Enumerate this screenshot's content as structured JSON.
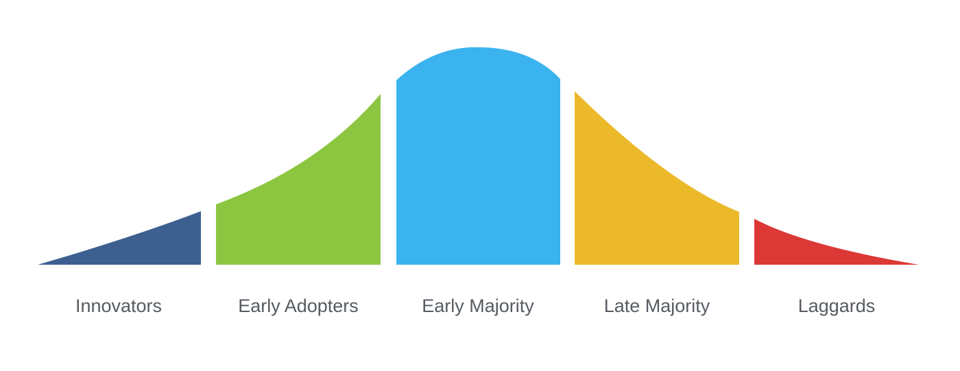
{
  "segments": [
    {
      "id": "innovators",
      "label": "Innovators",
      "color": "#3d6091"
    },
    {
      "id": "early-adopters",
      "label": "Early Adopters",
      "color": "#8cc641"
    },
    {
      "id": "early-majority",
      "label": "Early Majority",
      "color": "#3bb3ee"
    },
    {
      "id": "late-majority",
      "label": "Late Majority",
      "color": "#ecb92a"
    },
    {
      "id": "laggards",
      "label": "Laggards",
      "color": "#dc3836"
    }
  ],
  "background": "#ffffff",
  "label_color": "#555b61"
}
